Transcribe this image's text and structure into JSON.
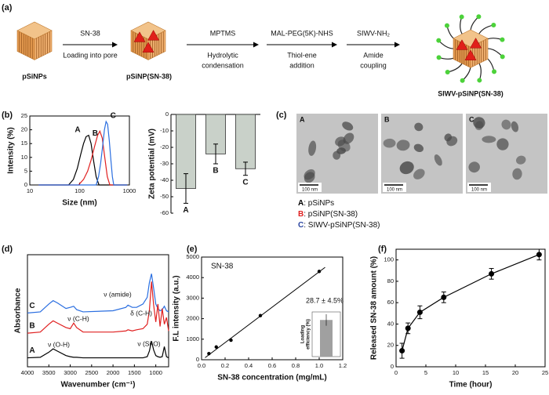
{
  "panel_labels": [
    "(a)",
    "(b)",
    "(c)",
    "(d)",
    "(e)",
    "(f)"
  ],
  "scheme": {
    "start": "pSiNPs",
    "loaded": "pSiNP(SN-38)",
    "final": "SIWV-pSiNP(SN-38)",
    "steps": [
      {
        "reagent": "SN-38",
        "process": [
          "Loading into pore"
        ]
      },
      {
        "reagent": "MPTMS",
        "process": [
          "Hydrolytic",
          "condensation"
        ]
      },
      {
        "reagent": "MAL-PEG(5K)-NHS",
        "process": [
          "Thiol-ene",
          "addition"
        ]
      },
      {
        "reagent": "SIWV-NH₂",
        "process": [
          "Amide",
          "coupling"
        ]
      }
    ]
  },
  "tem": {
    "images": [
      {
        "label": "A",
        "color": "#000000",
        "scale_bar": "100 nm"
      },
      {
        "label": "B",
        "color": "#e02020",
        "scale_bar": "100 nm"
      },
      {
        "label": "C",
        "color": "#2a44a0",
        "scale_bar": "100 nm"
      }
    ],
    "legend": [
      {
        "key": "A",
        "color": "#000000",
        "text": ": pSiNPs"
      },
      {
        "key": "B",
        "color": "#e02020",
        "text": ": pSiNP(SN-38)"
      },
      {
        "key": "C",
        "color": "#2a44a0",
        "text": ": SIWV-pSiNP(SN-38)"
      }
    ]
  },
  "chart_data": [
    {
      "type": "line",
      "xlabel": "Size (nm)",
      "ylabel": "Intensity (%)",
      "xlog": true,
      "xlim": [
        10,
        1000
      ],
      "xticks": [
        10,
        100,
        1000
      ],
      "ylim": [
        0,
        25
      ],
      "yticks": [
        0,
        5,
        10,
        15,
        20,
        25
      ],
      "series": [
        {
          "name": "A",
          "color": "#000000",
          "x": [
            15,
            60,
            75,
            90,
            105,
            120,
            135,
            152,
            170,
            190,
            215,
            245,
            900
          ],
          "values": [
            0,
            0,
            2,
            6,
            11,
            15,
            17.5,
            18,
            15,
            9,
            3,
            0,
            0
          ]
        },
        {
          "name": "B",
          "color": "#e02020",
          "x": [
            15,
            95,
            120,
            145,
            170,
            200,
            230,
            255,
            285,
            320,
            360,
            405,
            900
          ],
          "values": [
            0,
            0,
            2,
            5,
            9,
            14,
            18,
            19.5,
            17,
            10,
            3,
            0,
            0
          ]
        },
        {
          "name": "C",
          "color": "#2a6ee0",
          "x": [
            15,
            215,
            240,
            265,
            290,
            315,
            340,
            365,
            395,
            425,
            455,
            485,
            900
          ],
          "values": [
            0,
            0,
            3,
            8,
            14,
            20,
            23,
            22,
            16,
            9,
            3,
            0,
            0
          ]
        }
      ]
    },
    {
      "type": "bar",
      "ylabel": "Zeta potential (mV)",
      "categories": [
        "A",
        "B",
        "C"
      ],
      "category_colors": [
        "#000000",
        "#e02020",
        "#2a44a0"
      ],
      "values": [
        -45,
        -24,
        -33
      ],
      "errors": [
        9,
        6,
        4
      ],
      "color": "#c9d1c9",
      "ylim": [
        -60,
        0
      ],
      "yticks": [
        -60,
        -50,
        -40,
        -30,
        -20,
        -10,
        0
      ]
    },
    {
      "type": "line",
      "xlabel": "Wavenumber (cm⁻¹)",
      "ylabel": "Absorbance",
      "xlim": [
        4000,
        700
      ],
      "xticks": [
        4000,
        3500,
        3000,
        2500,
        2000,
        1500,
        1000
      ],
      "ylim": [
        0,
        10
      ],
      "x": [
        4000,
        3700,
        3500,
        3400,
        3300,
        3100,
        3000,
        2920,
        2850,
        2700,
        2000,
        1700,
        1650,
        1550,
        1450,
        1300,
        1200,
        1150,
        1100,
        1050,
        1000,
        950,
        900,
        850,
        800,
        750,
        700
      ],
      "series": [
        {
          "name": "C",
          "color": "#2a6ee0",
          "values": [
            4.8,
            4.9,
            5.6,
            5.9,
            5.7,
            5.2,
            5.3,
            5.4,
            5.1,
            4.9,
            5.0,
            5.3,
            5.5,
            5.3,
            5.3,
            5.6,
            6.2,
            7.5,
            8.3,
            7.0,
            5.6,
            5.2,
            5.0,
            5.1,
            5.4,
            5.0,
            4.9
          ]
        },
        {
          "name": "B",
          "color": "#e02020",
          "values": [
            3.0,
            3.1,
            3.8,
            4.1,
            3.9,
            3.5,
            3.4,
            3.9,
            3.5,
            3.1,
            3.1,
            3.2,
            3.3,
            3.2,
            3.3,
            3.4,
            3.8,
            5.0,
            7.6,
            5.5,
            4.0,
            5.6,
            3.6,
            5.2,
            3.8,
            4.4,
            3.2
          ]
        },
        {
          "name": "A",
          "color": "#000000",
          "values": [
            0.8,
            0.85,
            1.3,
            1.6,
            1.4,
            1.0,
            0.9,
            0.85,
            0.85,
            0.8,
            0.8,
            0.8,
            0.8,
            0.8,
            0.8,
            0.8,
            0.9,
            1.4,
            2.3,
            1.5,
            1.0,
            0.9,
            0.85,
            0.9,
            1.8,
            0.9,
            0.8
          ]
        }
      ],
      "annotations": [
        "ν (amide)",
        "ν (C-H)",
        "δ (C-H)",
        "ν (O-H)",
        "ν (Si-O)"
      ]
    },
    {
      "type": "scatter",
      "title": "SN-38",
      "xlabel": "SN-38 concentration (mg/mL)",
      "ylabel": "F.L intensity (a.u.)",
      "xlim": [
        0,
        1.2
      ],
      "xticks": [
        {
          "value": 0,
          "label": "0.0"
        },
        0.2,
        0.4,
        0.6,
        0.8,
        {
          "value": 1,
          "label": "1.0"
        },
        1.2
      ],
      "ylim": [
        0,
        5000
      ],
      "yticks": [
        0,
        1000,
        2000,
        3000,
        4000,
        5000
      ],
      "color": "#000000",
      "x": [
        0.0625,
        0.125,
        0.25,
        0.5,
        1.0
      ],
      "values": [
        300,
        620,
        950,
        2150,
        4300
      ],
      "fit": {
        "x": [
          0.03,
          1.05
        ],
        "values": [
          100,
          4500
        ]
      },
      "inset": {
        "ylabel": [
          "Loading",
          "efficiency (%)"
        ],
        "ylim": [
          0,
          35
        ],
        "value": 28.7,
        "error": 4.5,
        "value_label": "28.7 ± 4.5%",
        "color": "#a0a0a0"
      }
    },
    {
      "type": "line",
      "xlabel": "Time (hour)",
      "ylabel": "Released SN-38 amount (%)",
      "xlim": [
        0,
        25
      ],
      "xticks": [
        0,
        5,
        10,
        15,
        20,
        25
      ],
      "ylim": [
        0,
        110
      ],
      "yticks": [
        0,
        20,
        40,
        60,
        80,
        100
      ],
      "color": "#000000",
      "markers": true,
      "x": [
        1,
        2,
        4,
        8,
        16,
        24
      ],
      "values": [
        15,
        36,
        51,
        65,
        87,
        105
      ],
      "errors": [
        7,
        5,
        6,
        5,
        5,
        5
      ]
    }
  ]
}
